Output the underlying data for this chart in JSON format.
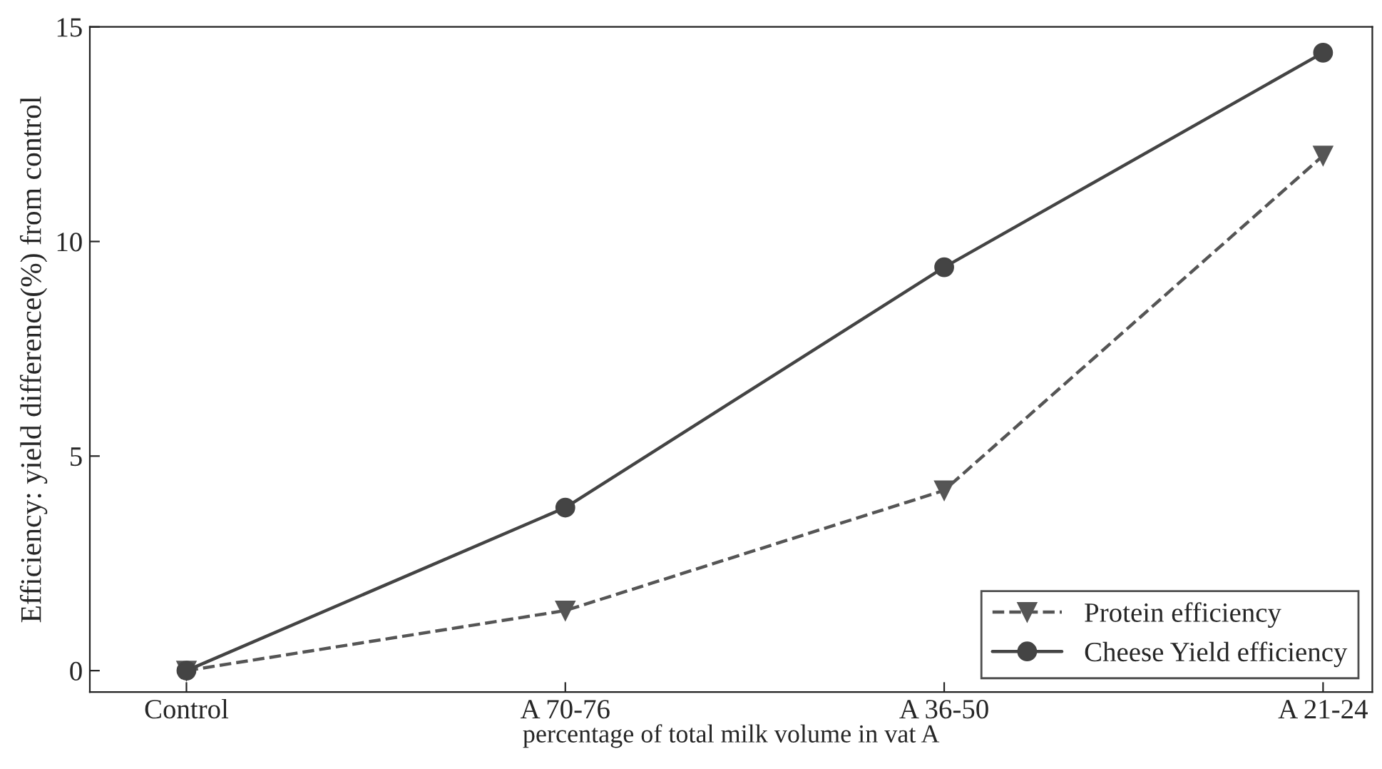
{
  "chart_data": {
    "type": "line",
    "xlabel": "percentage of total milk volume in vat A",
    "ylabel": "Efficiency: yield difference(%) from control",
    "categories": [
      "Control",
      "A 70-76",
      "A 36-50",
      "A 21-24"
    ],
    "series": [
      {
        "name": "Protein efficiency",
        "color": "#555555",
        "values": [
          0,
          1.4,
          4.2,
          12.0
        ],
        "marker": "triangle",
        "line_style": "dashed"
      },
      {
        "name": "Cheese Yield efficiency",
        "color": "#444444",
        "values": [
          0,
          3.8,
          9.4,
          14.4
        ],
        "marker": "circle",
        "line_style": "solid"
      }
    ],
    "ylim": [
      -0.5,
      15
    ],
    "yticks": [
      0,
      5,
      10,
      15
    ],
    "grid": false,
    "legend": "bottom right"
  }
}
